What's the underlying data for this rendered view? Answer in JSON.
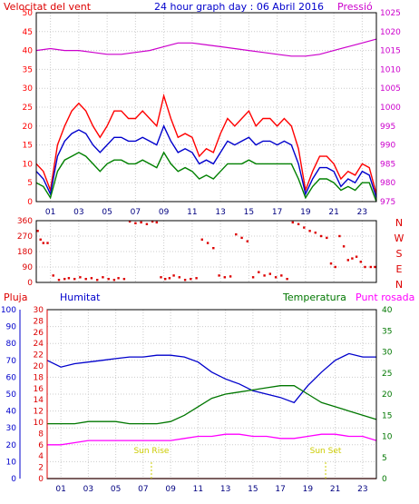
{
  "header": {
    "wind_label": "Velocitat del vent",
    "title": "24 hour graph day : 06 Abril 2016",
    "pressure_label": "Pressió"
  },
  "bottom_header": {
    "rain_label": "Pluja",
    "humidity_label": "Humitat",
    "temperature_label": "Temperatura",
    "dewpoint_label": "Punt rosada"
  },
  "colors": {
    "wind_gust": "#ff0000",
    "wind_avg": "#0000cc",
    "wind_low": "#008000",
    "pressure": "#cc00cc",
    "direction": "#dd0000",
    "humidity": "#0000cc",
    "temperature": "#007700",
    "dewpoint": "#ff00ff",
    "rain": "#dd0000",
    "sun": "#cccc00",
    "grid": "#cccccc",
    "frame": "#000000"
  },
  "chart_data": [
    {
      "type": "line",
      "panel": "wind-pressure",
      "x_ticks": [
        "01",
        "03",
        "05",
        "07",
        "09",
        "11",
        "13",
        "15",
        "17",
        "19",
        "21",
        "23"
      ],
      "x_range": [
        0,
        24
      ],
      "left_axis": {
        "ylim": [
          0,
          50
        ],
        "ticks": [
          0,
          5,
          10,
          15,
          20,
          25,
          30,
          35,
          40,
          45,
          50
        ]
      },
      "right_axis": {
        "ylim": [
          975,
          1025
        ],
        "ticks": [
          975,
          980,
          985,
          990,
          995,
          1000,
          1005,
          1010,
          1015,
          1020,
          1025
        ]
      },
      "series": [
        {
          "key": "gust",
          "x": [
            0,
            0.5,
            1,
            1.5,
            2,
            2.5,
            3,
            3.5,
            4,
            4.5,
            5,
            5.5,
            6,
            6.5,
            7,
            7.5,
            8,
            8.5,
            9,
            9.5,
            10,
            10.5,
            11,
            11.5,
            12,
            12.5,
            13,
            13.5,
            14,
            14.5,
            15,
            15.5,
            16,
            16.5,
            17,
            17.5,
            18,
            18.5,
            19,
            19.5,
            20,
            20.5,
            21,
            21.5,
            22,
            22.5,
            23,
            23.5,
            24
          ],
          "y": [
            10,
            8,
            3,
            15,
            20,
            24,
            26,
            24,
            20,
            17,
            20,
            24,
            24,
            22,
            22,
            24,
            22,
            20,
            28,
            22,
            17,
            18,
            17,
            12,
            14,
            13,
            18,
            22,
            20,
            22,
            24,
            20,
            22,
            22,
            20,
            22,
            20,
            14,
            3,
            8,
            12,
            12,
            10,
            6,
            8,
            7,
            10,
            9,
            2
          ]
        },
        {
          "key": "avg",
          "x": [
            0,
            0.5,
            1,
            1.5,
            2,
            2.5,
            3,
            3.5,
            4,
            4.5,
            5,
            5.5,
            6,
            6.5,
            7,
            7.5,
            8,
            8.5,
            9,
            9.5,
            10,
            10.5,
            11,
            11.5,
            12,
            12.5,
            13,
            13.5,
            14,
            14.5,
            15,
            15.5,
            16,
            16.5,
            17,
            17.5,
            18,
            18.5,
            19,
            19.5,
            20,
            20.5,
            21,
            21.5,
            22,
            22.5,
            23,
            23.5,
            24
          ],
          "y": [
            8,
            6,
            2,
            12,
            16,
            18,
            19,
            18,
            15,
            13,
            15,
            17,
            17,
            16,
            16,
            17,
            16,
            15,
            20,
            16,
            13,
            14,
            13,
            10,
            11,
            10,
            13,
            16,
            15,
            16,
            17,
            15,
            16,
            16,
            15,
            16,
            15,
            10,
            2,
            6,
            9,
            9,
            8,
            4,
            6,
            5,
            8,
            7,
            1
          ]
        },
        {
          "key": "low",
          "x": [
            0,
            0.5,
            1,
            1.5,
            2,
            2.5,
            3,
            3.5,
            4,
            4.5,
            5,
            5.5,
            6,
            6.5,
            7,
            7.5,
            8,
            8.5,
            9,
            9.5,
            10,
            10.5,
            11,
            11.5,
            12,
            12.5,
            13,
            13.5,
            14,
            14.5,
            15,
            15.5,
            16,
            16.5,
            17,
            17.5,
            18,
            18.5,
            19,
            19.5,
            20,
            20.5,
            21,
            21.5,
            22,
            22.5,
            23,
            23.5,
            24
          ],
          "y": [
            5,
            4,
            1,
            8,
            11,
            12,
            13,
            12,
            10,
            8,
            10,
            11,
            11,
            10,
            10,
            11,
            10,
            9,
            13,
            10,
            8,
            9,
            8,
            6,
            7,
            6,
            8,
            10,
            10,
            10,
            11,
            10,
            10,
            10,
            10,
            10,
            10,
            6,
            1,
            4,
            6,
            6,
            5,
            3,
            4,
            3,
            5,
            5,
            0
          ]
        },
        {
          "key": "pressure",
          "axis": "right",
          "x": [
            0,
            1,
            2,
            3,
            4,
            5,
            6,
            7,
            8,
            9,
            10,
            11,
            12,
            13,
            14,
            15,
            16,
            17,
            18,
            19,
            20,
            21,
            22,
            23,
            24
          ],
          "y": [
            1015,
            1015.5,
            1015,
            1015,
            1014.5,
            1014,
            1014,
            1014.5,
            1015,
            1016,
            1017,
            1017,
            1016.5,
            1016,
            1015.5,
            1015,
            1014.5,
            1014,
            1013.5,
            1013.5,
            1014,
            1015,
            1016,
            1017,
            1018
          ]
        }
      ]
    },
    {
      "type": "scatter",
      "panel": "wind-direction",
      "x_range": [
        0,
        24
      ],
      "ylim": [
        0,
        360
      ],
      "y_ticks": [
        0,
        90,
        180,
        270,
        360
      ],
      "compass_labels": [
        "N",
        "W",
        "S",
        "E",
        "N"
      ],
      "x": [
        0.1,
        0.3,
        0.5,
        0.8,
        1.2,
        1.6,
        2.0,
        2.3,
        2.7,
        3.1,
        3.5,
        3.9,
        4.3,
        4.7,
        5.1,
        5.5,
        5.8,
        6.2,
        6.6,
        7.0,
        7.4,
        7.8,
        8.2,
        8.5,
        8.8,
        9.1,
        9.4,
        9.7,
        10.1,
        10.5,
        10.9,
        11.3,
        11.7,
        12.1,
        12.5,
        12.9,
        13.3,
        13.7,
        14.1,
        14.5,
        14.9,
        15.3,
        15.7,
        16.1,
        16.5,
        16.9,
        17.3,
        17.7,
        18.1,
        18.5,
        18.9,
        19.3,
        19.7,
        20.1,
        20.5,
        20.8,
        21.1,
        21.4,
        21.7,
        22.0,
        22.3,
        22.6,
        22.9,
        23.2,
        23.6,
        23.9
      ],
      "y": [
        300,
        250,
        230,
        230,
        40,
        15,
        20,
        25,
        20,
        30,
        20,
        25,
        15,
        30,
        20,
        15,
        25,
        20,
        355,
        345,
        350,
        340,
        355,
        350,
        30,
        20,
        25,
        40,
        30,
        15,
        20,
        25,
        250,
        230,
        200,
        40,
        30,
        35,
        280,
        260,
        240,
        30,
        60,
        40,
        50,
        30,
        40,
        20,
        350,
        340,
        320,
        300,
        290,
        270,
        260,
        110,
        90,
        270,
        210,
        130,
        140,
        150,
        120,
        90,
        90,
        90
      ]
    },
    {
      "type": "line",
      "panel": "humidity-temperature",
      "x_range": [
        0,
        24
      ],
      "humidity_axis": {
        "ylim": [
          0,
          100
        ],
        "ticks": [
          0,
          10,
          20,
          30,
          40,
          50,
          60,
          70,
          80,
          90,
          100
        ]
      },
      "rain_axis": {
        "ylim": [
          0,
          30
        ],
        "ticks": [
          0,
          2,
          4,
          6,
          8,
          10,
          12,
          14,
          16,
          18,
          20,
          22,
          24,
          26,
          28,
          30
        ]
      },
      "temperature_axis": {
        "ylim": [
          0,
          40
        ],
        "ticks": [
          0,
          5,
          10,
          15,
          20,
          25,
          30,
          35,
          40
        ]
      },
      "series": [
        {
          "key": "humidity",
          "x": [
            0,
            1,
            2,
            3,
            4,
            5,
            6,
            7,
            8,
            9,
            10,
            11,
            12,
            13,
            14,
            15,
            16,
            17,
            18,
            19,
            20,
            21,
            22,
            23,
            24
          ],
          "y": [
            70,
            66,
            68,
            69,
            70,
            71,
            72,
            72,
            73,
            73,
            72,
            69,
            63,
            59,
            56,
            52,
            50,
            48,
            45,
            55,
            63,
            70,
            74,
            72,
            72
          ]
        },
        {
          "key": "temperature",
          "x": [
            0,
            1,
            2,
            3,
            4,
            5,
            6,
            7,
            8,
            9,
            10,
            11,
            12,
            13,
            14,
            15,
            16,
            17,
            18,
            19,
            20,
            21,
            22,
            23,
            24
          ],
          "y": [
            13,
            13,
            13,
            13.5,
            13.5,
            13.5,
            13,
            13,
            13,
            13.5,
            15,
            17,
            19,
            20,
            20.5,
            21,
            21.5,
            22,
            22,
            20,
            18,
            17,
            16,
            15,
            14
          ]
        },
        {
          "key": "dewpoint",
          "x": [
            0,
            1,
            2,
            3,
            4,
            5,
            6,
            7,
            8,
            9,
            10,
            11,
            12,
            13,
            14,
            15,
            16,
            17,
            18,
            19,
            20,
            21,
            22,
            23,
            24
          ],
          "y": [
            8,
            8,
            8.5,
            9,
            9,
            9,
            9,
            9,
            9,
            9,
            9.5,
            10,
            10,
            10.5,
            10.5,
            10,
            10,
            9.5,
            9.5,
            10,
            10.5,
            10.5,
            10,
            10,
            9
          ]
        },
        {
          "key": "rain",
          "axis": "rain",
          "x": [
            0,
            24
          ],
          "y": [
            0,
            0
          ]
        }
      ],
      "sun_rise": {
        "label": "Sun Rise",
        "hour": 7.6
      },
      "sun_set": {
        "label": "Sun Set",
        "hour": 20.3
      }
    }
  ]
}
